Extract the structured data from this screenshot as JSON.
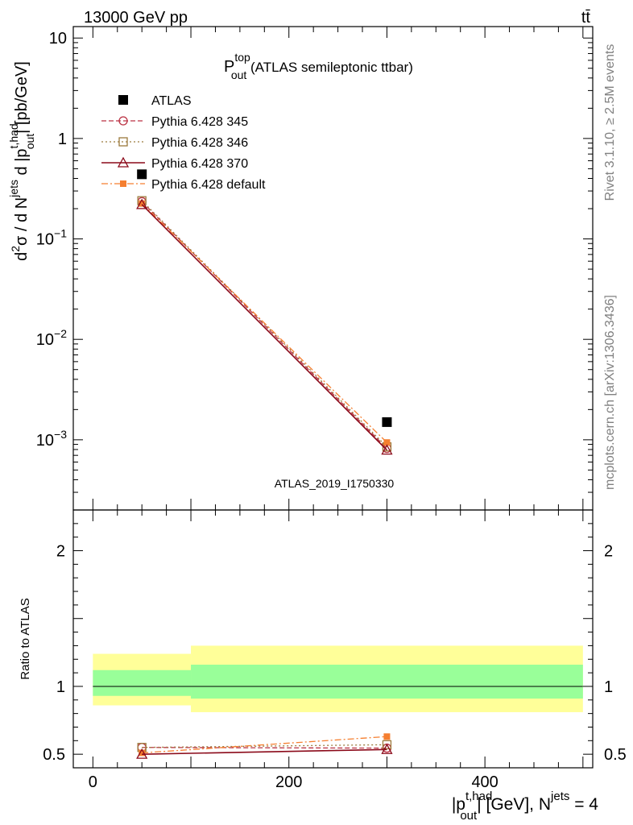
{
  "header": {
    "energy_label": "13000 GeV pp",
    "process_label": "tt̄"
  },
  "side_labels": {
    "rivet": "Rivet 3.1.10, ≥ 2.5M events",
    "mcplots": "mcplots.cern.ch [arXiv:1306.3436]"
  },
  "chart_data": [
    {
      "type": "line",
      "panel": "main",
      "title": {
        "main": "P",
        "sup": "top",
        "sub": "out",
        "rest": " (ATLAS semileptonic ttbar)"
      },
      "watermark": "ATLAS_2019_I1750330",
      "ylabel": {
        "a": "d",
        "a_sup": "2",
        "b": "σ  /  d N",
        "b_sup": "jets",
        "c": " d |p",
        "c_sup": "t,had",
        "c_sub": "out",
        "d": "| [pb/GeV]"
      },
      "y_scale": "log",
      "ylim": [
        0.0002,
        13
      ],
      "xlim": [
        -20,
        510
      ],
      "y_ticks": [
        {
          "value": 10,
          "base": "10",
          "exp": ""
        },
        {
          "value": 1,
          "base": "1",
          "exp": ""
        },
        {
          "value": 0.1,
          "base": "10",
          "exp": "−1"
        },
        {
          "value": 0.01,
          "base": "10",
          "exp": "−2"
        },
        {
          "value": 0.001,
          "base": "10",
          "exp": "−3"
        }
      ],
      "legend_position": "top-left",
      "series": [
        {
          "name": "ATLAS",
          "color": "#000000",
          "marker": "square-filled",
          "line": "none",
          "points": [
            {
              "x": 50,
              "y": 0.44
            },
            {
              "x": 300,
              "y": 0.0015
            }
          ]
        },
        {
          "name": "Pythia 6.428 345",
          "color": "#bb3344",
          "marker": "circle-open",
          "line": "dashed",
          "points": [
            {
              "x": 50,
              "y": 0.235
            },
            {
              "x": 300,
              "y": 0.00082
            }
          ]
        },
        {
          "name": "Pythia 6.428 346",
          "color": "#9c7a3c",
          "marker": "square-open",
          "line": "dotted",
          "points": [
            {
              "x": 50,
              "y": 0.24
            },
            {
              "x": 300,
              "y": 0.00085
            }
          ]
        },
        {
          "name": "Pythia 6.428 370",
          "color": "#8b0a1a",
          "marker": "triangle-open",
          "line": "solid",
          "points": [
            {
              "x": 50,
              "y": 0.22
            },
            {
              "x": 300,
              "y": 0.00079
            }
          ]
        },
        {
          "name": "Pythia 6.428 default",
          "color": "#f57f30",
          "marker": "square-filled-small",
          "line": "dashdot",
          "points": [
            {
              "x": 50,
              "y": 0.225
            },
            {
              "x": 300,
              "y": 0.00094
            }
          ]
        }
      ]
    },
    {
      "type": "line",
      "panel": "ratio",
      "ylabel": "Ratio to ATLAS",
      "ylim": [
        0.4,
        2.3
      ],
      "xlim": [
        -20,
        510
      ],
      "y_ticks": [
        0.5,
        1,
        2
      ],
      "x_ticks": [
        0,
        200,
        400
      ],
      "xlabel": {
        "a": "|p",
        "a_sup": "t,had",
        "a_sub": "out",
        "b": "| [GeV], N",
        "b_sup": "jets",
        "c": " = 4"
      },
      "uncertainty_bands": [
        {
          "x0": 0,
          "x1": 100,
          "inner": [
            0.93,
            1.12
          ],
          "outer": [
            0.86,
            1.24
          ]
        },
        {
          "x0": 100,
          "x1": 500,
          "inner": [
            0.91,
            1.16
          ],
          "outer": [
            0.81,
            1.3
          ]
        }
      ],
      "band_colors": {
        "inner": "#99ff99",
        "outer": "#ffff99"
      },
      "series": [
        {
          "name": "Pythia 6.428 345",
          "points": [
            {
              "x": 50,
              "y": 0.55
            },
            {
              "x": 300,
              "y": 0.545
            }
          ]
        },
        {
          "name": "Pythia 6.428 346",
          "points": [
            {
              "x": 50,
              "y": 0.55
            },
            {
              "x": 300,
              "y": 0.57
            }
          ]
        },
        {
          "name": "Pythia 6.428 370",
          "points": [
            {
              "x": 50,
              "y": 0.5
            },
            {
              "x": 300,
              "y": 0.535
            }
          ]
        },
        {
          "name": "Pythia 6.428 default",
          "points": [
            {
              "x": 50,
              "y": 0.51
            },
            {
              "x": 300,
              "y": 0.63
            }
          ]
        }
      ]
    }
  ]
}
